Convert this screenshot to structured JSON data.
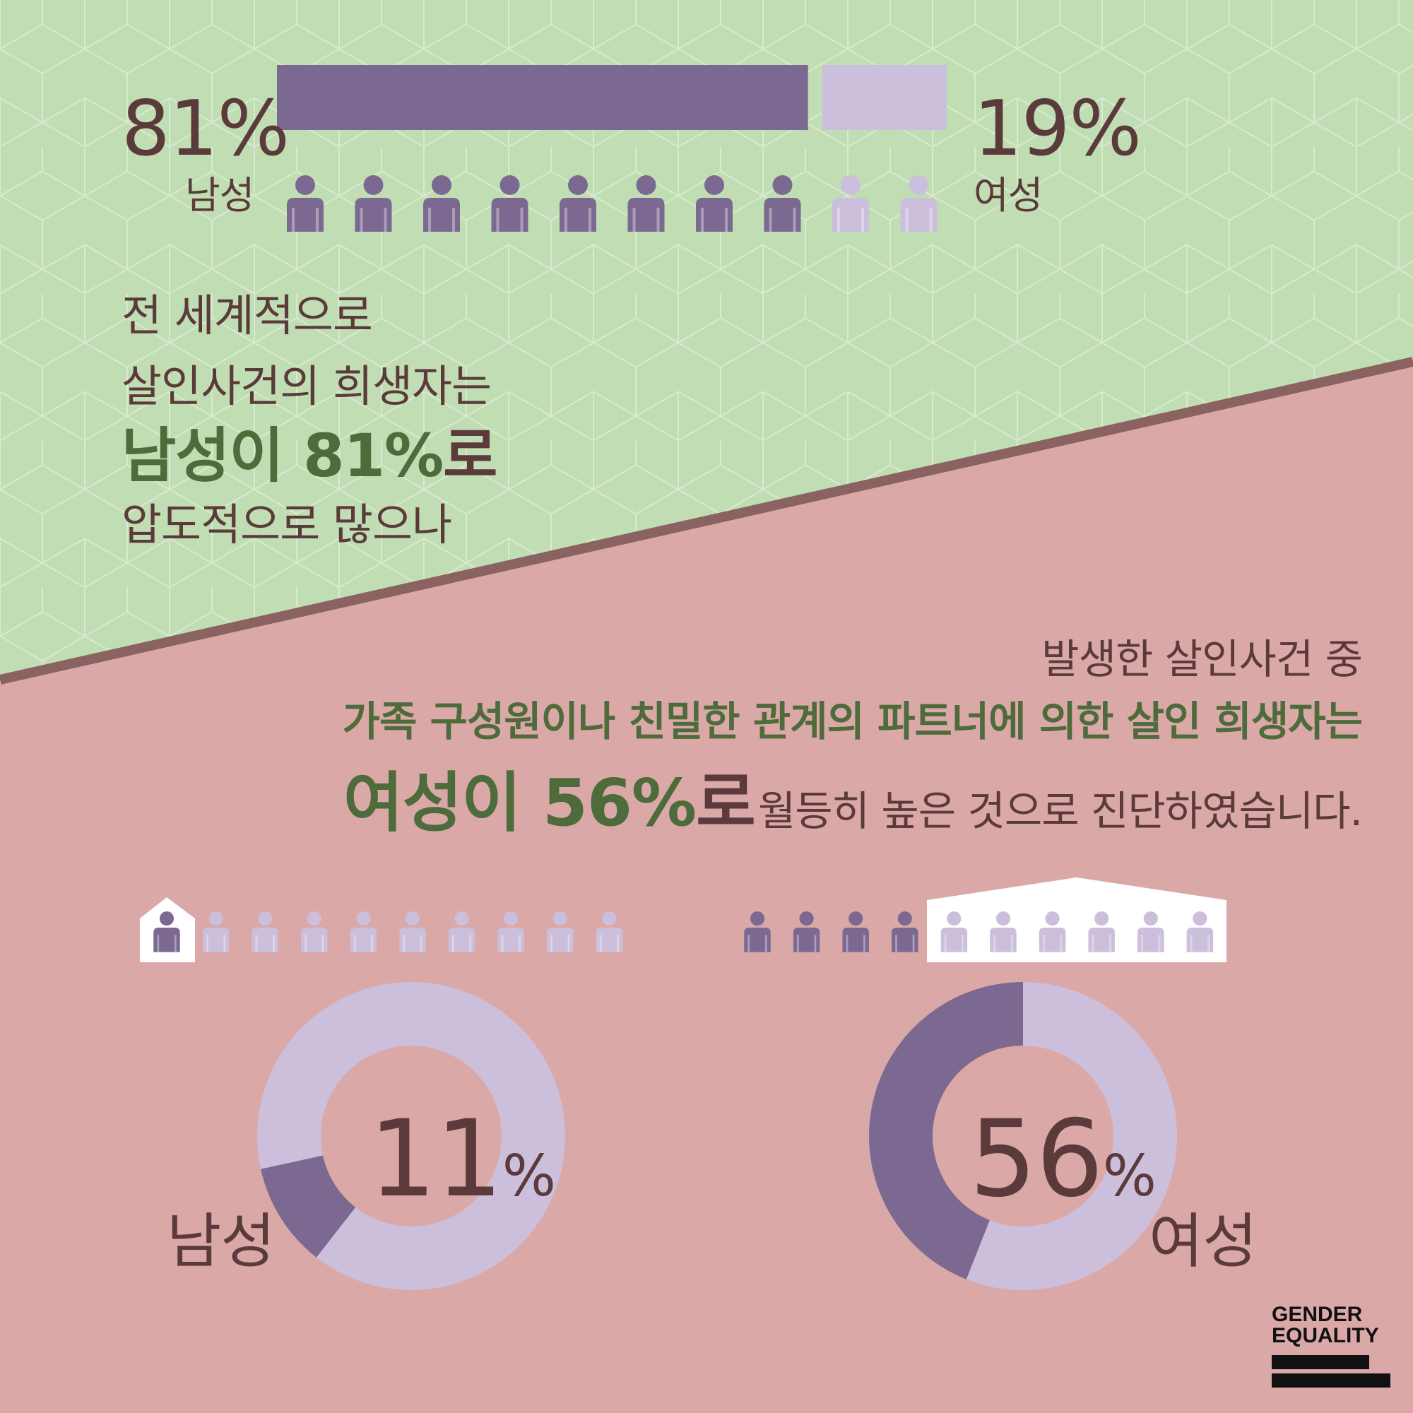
{
  "colors": {
    "green_bg": "#c1ddb4",
    "pink_bg": "#dba8a8",
    "divider": "#8a6262",
    "dark_purple": "#7b6991",
    "light_purple": "#cbbfdb",
    "brown_text": "#5a3a3a",
    "green_text": "#4e6b3c"
  },
  "top_section": {
    "male_pct": "81%",
    "male_label": "남성",
    "female_pct": "19%",
    "female_label": "여성",
    "text_line1": "전 세계적으로",
    "text_line2": "살인사건의 희생자는",
    "text_line3_hl": "남성이 81%",
    "text_line3_tail": "로",
    "text_line4": "압도적으로 많으나"
  },
  "bottom_section": {
    "line1": "발생한 살인사건 중",
    "line2": "가족 구성원이나 친밀한 관계의 파트너에 의한 살인 희생자는",
    "line3_hl": "여성이 56%",
    "line3_ro": "로",
    "line3_tail": "월등히 높은 것으로 진단하였습니다."
  },
  "donut_male": {
    "number": "11",
    "symbol": "%",
    "label": "남성"
  },
  "donut_female": {
    "number": "56",
    "symbol": "%",
    "label": "여성"
  },
  "logo": {
    "line1": "GENDER",
    "line2": "EQUALITY"
  },
  "chart_data": [
    {
      "type": "bar",
      "categories": [
        "남성",
        "여성"
      ],
      "values": [
        81,
        19
      ],
      "unit": "%"
    },
    {
      "type": "pie",
      "categories": [
        "남성",
        ""
      ],
      "values": [
        11,
        89
      ],
      "unit": "%"
    },
    {
      "type": "pie",
      "categories": [
        "여성",
        ""
      ],
      "values": [
        56,
        44
      ],
      "unit": "%"
    }
  ]
}
